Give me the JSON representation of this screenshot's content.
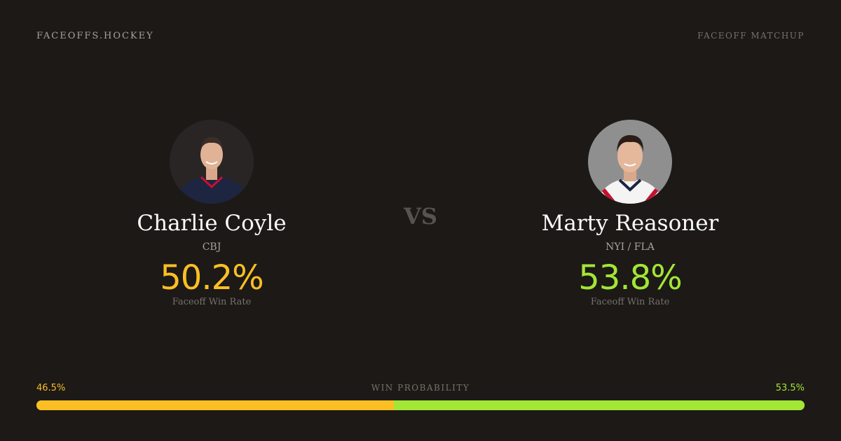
{
  "header": {
    "brand": "FACEOFFS.HOCKEY",
    "tag": "FACEOFF MATCHUP"
  },
  "vs": "VS",
  "players": [
    {
      "name": "Charlie Coyle",
      "team": "CBJ",
      "rate": "50.2%",
      "rate_label": "Faceoff Win Rate",
      "color": "#fbbf24"
    },
    {
      "name": "Marty Reasoner",
      "team": "NYI / FLA",
      "rate": "53.8%",
      "rate_label": "Faceoff Win Rate",
      "color": "#a3e635"
    }
  ],
  "probability": {
    "label": "WIN PROBABILITY",
    "left": "46.5%",
    "right": "53.5%",
    "left_fraction": 0.465,
    "colors": {
      "left": "#fbbf24",
      "right": "#a3e635"
    }
  }
}
